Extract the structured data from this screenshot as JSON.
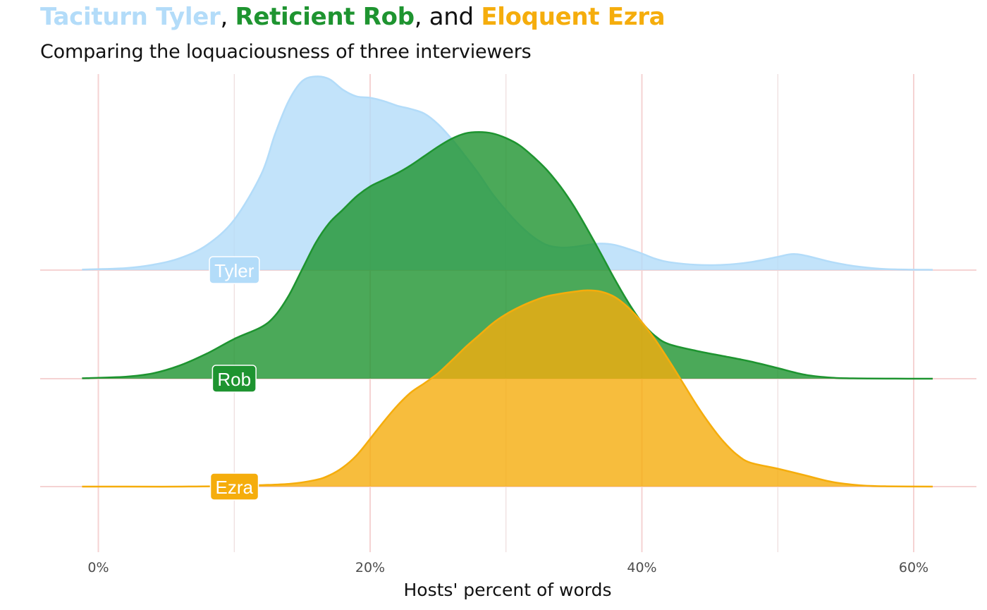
{
  "title": {
    "parts": [
      {
        "text": "Taciturn Tyler",
        "color": "#b3dcf9"
      },
      {
        "text": ", ",
        "color": "#111111"
      },
      {
        "text": "Reticient Rob",
        "color": "#1e9430"
      },
      {
        "text": ", and ",
        "color": "#111111"
      },
      {
        "text": "Eloquent Ezra",
        "color": "#f5ad0c"
      }
    ]
  },
  "subtitle": "Comparing the loquaciousness of three interviewers",
  "chart_data": {
    "type": "ridgeline density",
    "xlabel": "Hosts' percent of words",
    "ylabel": "",
    "xlim": [
      -4.3,
      64.4
    ],
    "x_ticks": [
      {
        "value": 0,
        "label": "0%"
      },
      {
        "value": 20,
        "label": "20%"
      },
      {
        "value": 40,
        "label": "40%"
      },
      {
        "value": 60,
        "label": "60%"
      }
    ],
    "x_minor_gridlines": [
      10,
      30,
      50
    ],
    "grid": true,
    "legend": "none (direct labels)",
    "series": [
      {
        "name": "Tyler",
        "fill": "#b3dcf9",
        "line": "#b3dcf9",
        "fill_opacity": 0.8,
        "label_x": 10,
        "density_x": [
          -1.2,
          2,
          4,
          6,
          8,
          10,
          12,
          13,
          14,
          15,
          16,
          17,
          18,
          19,
          20,
          21,
          22,
          23,
          24,
          25,
          26,
          27,
          28,
          29,
          30,
          31,
          32,
          33,
          34,
          35,
          36,
          37,
          38,
          39,
          40,
          41,
          42,
          44,
          46,
          48,
          50,
          51,
          52,
          54,
          56,
          58,
          61.4
        ],
        "density_y": [
          0.008,
          0.03,
          0.08,
          0.18,
          0.38,
          0.76,
          1.45,
          2.05,
          2.55,
          2.85,
          2.92,
          2.88,
          2.72,
          2.62,
          2.6,
          2.55,
          2.48,
          2.43,
          2.36,
          2.2,
          1.98,
          1.72,
          1.45,
          1.15,
          0.9,
          0.68,
          0.5,
          0.38,
          0.34,
          0.35,
          0.38,
          0.4,
          0.38,
          0.32,
          0.25,
          0.17,
          0.12,
          0.08,
          0.08,
          0.12,
          0.2,
          0.24,
          0.22,
          0.12,
          0.05,
          0.015,
          0.004
        ]
      },
      {
        "name": "Rob",
        "fill": "#1e9430",
        "line": "#1e9430",
        "fill_opacity": 0.8,
        "label_x": 10,
        "density_x": [
          -1.2,
          2,
          4,
          6,
          8,
          10,
          12,
          13,
          14,
          15,
          16,
          17,
          18,
          19,
          20,
          21,
          22,
          23,
          24,
          25,
          26,
          27,
          28,
          29,
          30,
          31,
          32,
          33,
          34,
          35,
          36,
          37,
          38,
          39,
          40,
          41,
          42,
          44,
          46,
          48,
          50,
          52,
          54,
          56,
          58,
          61.4
        ],
        "density_y": [
          0.006,
          0.03,
          0.08,
          0.2,
          0.38,
          0.6,
          0.78,
          0.95,
          1.25,
          1.65,
          2.05,
          2.35,
          2.55,
          2.75,
          2.9,
          3.0,
          3.1,
          3.22,
          3.36,
          3.5,
          3.62,
          3.7,
          3.72,
          3.7,
          3.63,
          3.52,
          3.35,
          3.15,
          2.9,
          2.6,
          2.25,
          1.88,
          1.5,
          1.15,
          0.85,
          0.64,
          0.52,
          0.42,
          0.34,
          0.26,
          0.16,
          0.06,
          0.015,
          0.004,
          0.001,
          0.0
        ]
      },
      {
        "name": "Ezra",
        "fill": "#f5ad0c",
        "line": "#f5ad0c",
        "fill_opacity": 0.8,
        "label_x": 10,
        "density_x": [
          -1.2,
          2,
          6,
          10,
          14,
          16,
          17,
          18,
          19,
          20,
          21,
          22,
          23,
          24,
          25,
          26,
          27,
          28,
          29,
          30,
          31,
          32,
          33,
          34,
          35,
          36,
          37,
          38,
          39,
          40,
          41,
          42,
          43,
          44,
          45,
          46,
          47,
          48,
          50,
          52,
          54,
          56,
          58,
          61.4
        ],
        "density_y": [
          0.0,
          0.0,
          0.0,
          0.01,
          0.04,
          0.1,
          0.17,
          0.29,
          0.47,
          0.72,
          0.98,
          1.22,
          1.42,
          1.56,
          1.71,
          1.9,
          2.1,
          2.28,
          2.46,
          2.6,
          2.71,
          2.8,
          2.87,
          2.91,
          2.94,
          2.96,
          2.94,
          2.86,
          2.7,
          2.48,
          2.21,
          1.9,
          1.57,
          1.24,
          0.94,
          0.68,
          0.48,
          0.36,
          0.27,
          0.17,
          0.07,
          0.02,
          0.004,
          0.0
        ]
      }
    ]
  }
}
